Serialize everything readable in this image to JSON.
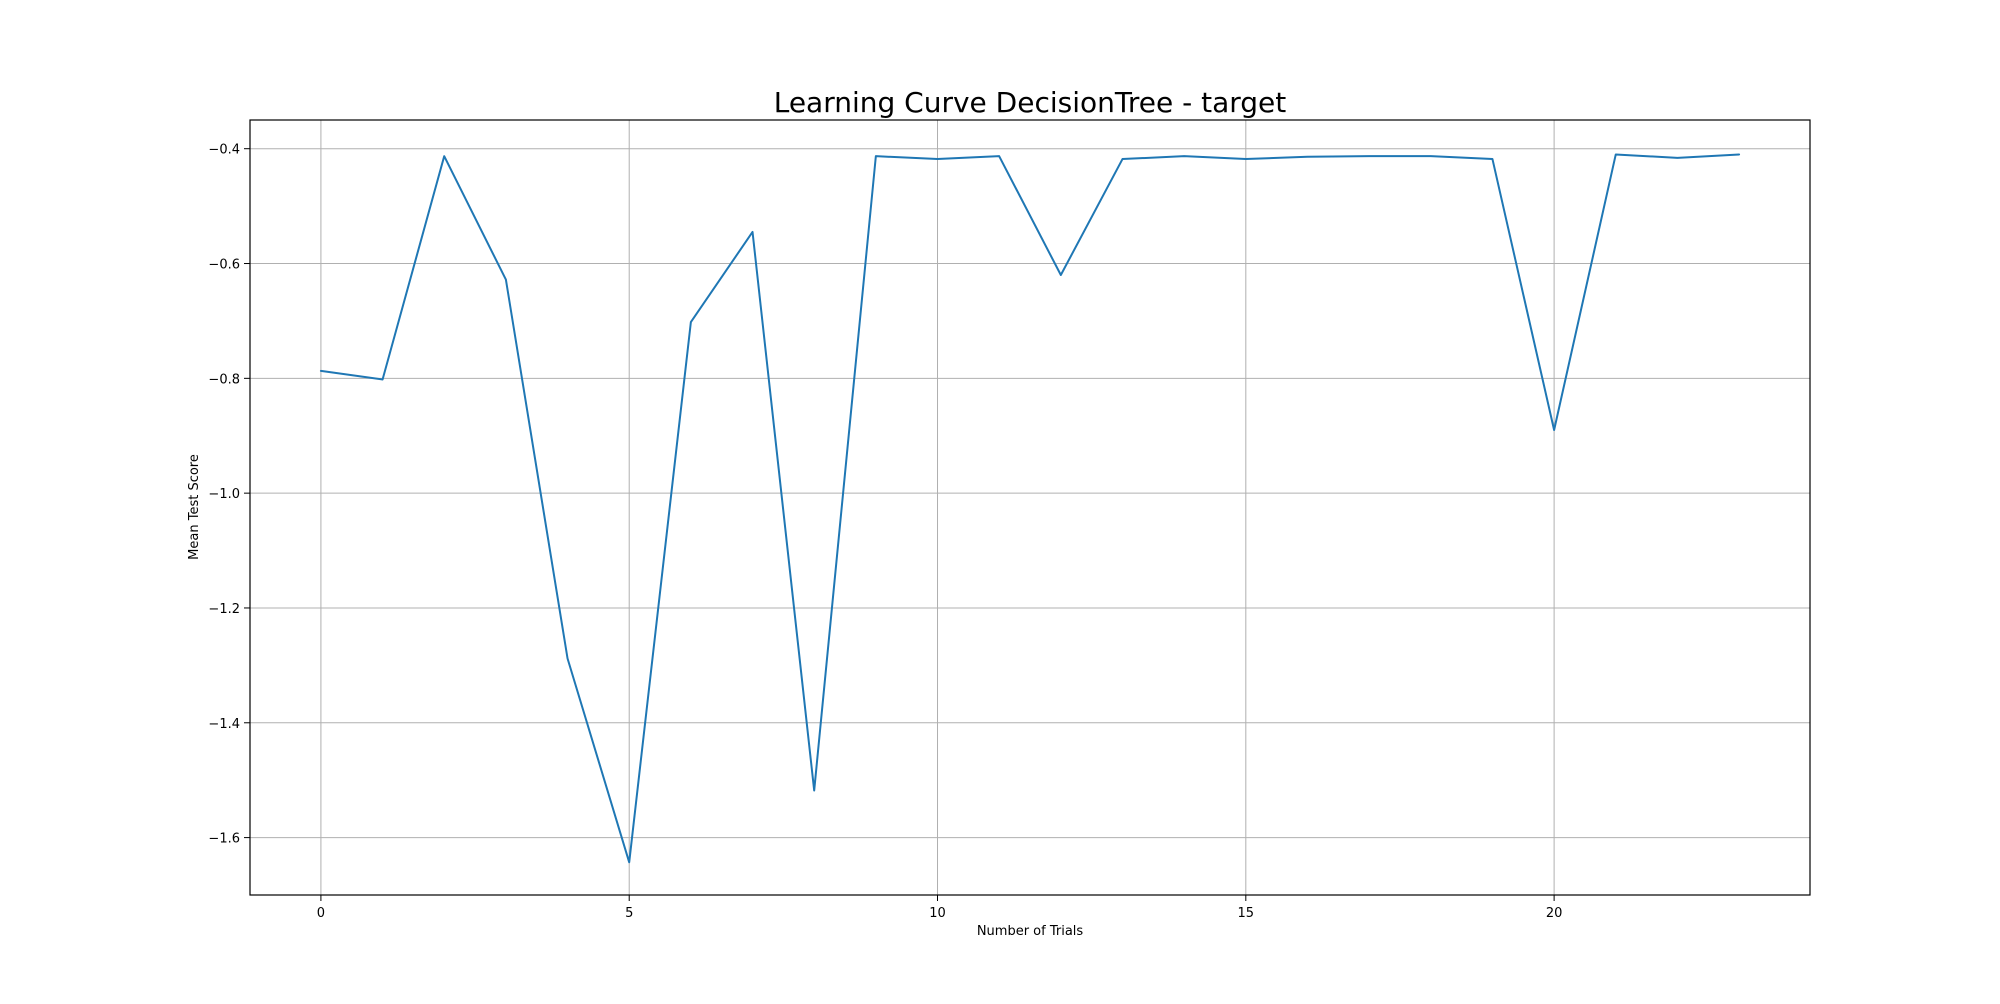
{
  "chart_data": {
    "type": "line",
    "title": "Learning Curve DecisionTree - target",
    "xlabel": "Number of Trials",
    "ylabel": "Mean Test Score",
    "xlim": [
      -1.15,
      24.15
    ],
    "ylim": [
      -1.7,
      -0.35
    ],
    "xticks": [
      0,
      5,
      10,
      15,
      20
    ],
    "xtick_labels": [
      "0",
      "5",
      "10",
      "15",
      "20"
    ],
    "yticks": [
      -1.6,
      -1.4,
      -1.2,
      -1.0,
      -0.8,
      -0.6,
      -0.4
    ],
    "ytick_labels": [
      "−1.6",
      "−1.4",
      "−1.2",
      "−1.0",
      "−0.8",
      "−0.6",
      "−0.4"
    ],
    "grid": true,
    "legend": "none",
    "line_color": "#1f77b4",
    "series": [
      {
        "x": [
          0,
          1,
          2,
          3,
          4,
          5,
          6,
          7,
          8,
          9,
          10,
          11,
          12,
          13,
          14,
          15,
          16,
          17,
          18,
          19,
          20,
          21,
          22,
          23
        ],
        "values": [
          -0.787,
          -0.802,
          -0.413,
          -0.628,
          -1.288,
          -1.643,
          -0.702,
          -0.545,
          -1.518,
          -0.413,
          -0.418,
          -0.413,
          -0.62,
          -0.418,
          -0.413,
          -0.418,
          -0.414,
          -0.413,
          -0.413,
          -0.418,
          -0.89,
          -0.41,
          -0.416,
          -0.41
        ]
      }
    ]
  }
}
